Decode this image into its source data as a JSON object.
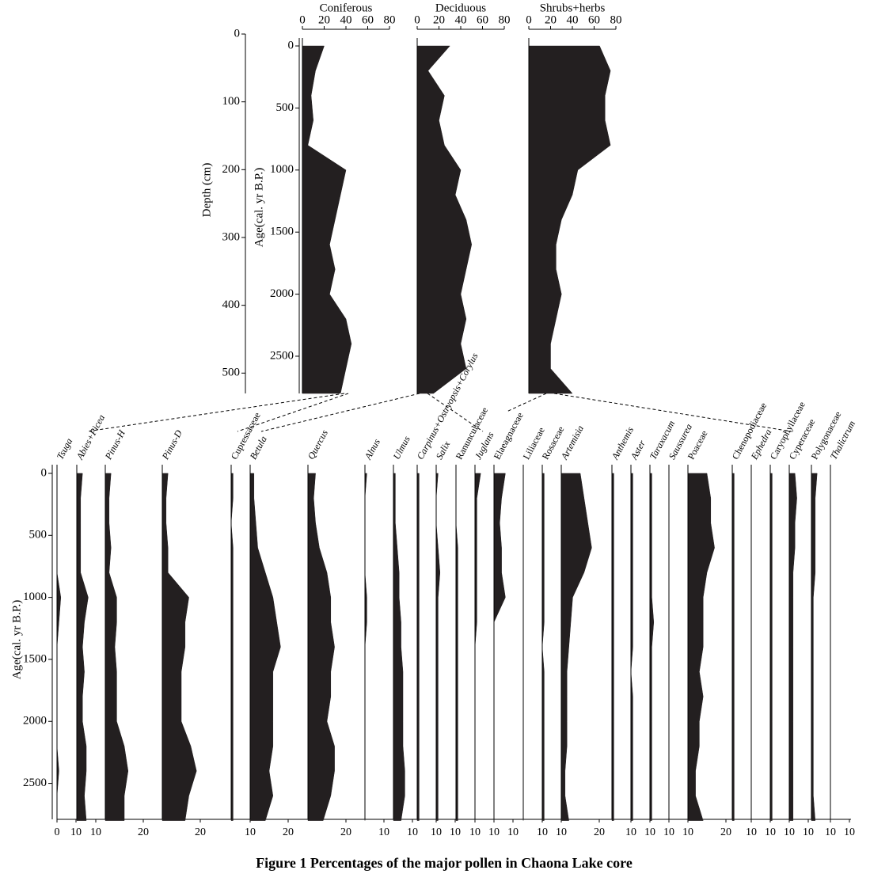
{
  "caption": "Figure 1  Percentages of the major pollen in Chaona Lake core",
  "chart_data": [
    {
      "type": "area",
      "y_label": "Age(cal. yr B.P.)",
      "ylim": [
        -64,
        2800
      ],
      "yticks": [
        0,
        500,
        1000,
        1500,
        2000,
        2500
      ],
      "y2_label": "Depth (cm)",
      "y2lim": [
        0,
        530
      ],
      "y2ticks": [
        0,
        100,
        200,
        300,
        400,
        500
      ],
      "ages": [
        0,
        200,
        400,
        600,
        800,
        1000,
        1200,
        1400,
        1600,
        1800,
        2000,
        2200,
        2400,
        2600,
        2800
      ],
      "series": [
        {
          "name": "Coniferous",
          "color": "#231f20",
          "xlim": [
            0,
            80
          ],
          "xticks": [
            0,
            20,
            40,
            60,
            80
          ],
          "values": [
            20,
            12,
            8,
            10,
            5,
            40,
            35,
            30,
            25,
            30,
            25,
            40,
            45,
            40,
            35
          ]
        },
        {
          "name": "Deciduous",
          "color": "#231f20",
          "xlim": [
            0,
            80
          ],
          "xticks": [
            0,
            20,
            40,
            60,
            80
          ],
          "values": [
            30,
            10,
            25,
            20,
            25,
            40,
            35,
            45,
            50,
            45,
            40,
            45,
            40,
            45,
            15
          ]
        },
        {
          "name": "Shrubs+herbs",
          "color": "#231f20",
          "xlim": [
            0,
            80
          ],
          "xticks": [
            0,
            20,
            40,
            60,
            80
          ],
          "values": [
            65,
            75,
            70,
            70,
            75,
            45,
            40,
            30,
            25,
            25,
            30,
            25,
            20,
            20,
            40
          ]
        }
      ]
    },
    {
      "type": "area",
      "y_label": "Age(cal. yr B.P.)",
      "ylim": [
        -70,
        2790
      ],
      "yticks": [
        0,
        500,
        1000,
        1500,
        2000,
        2500
      ],
      "ages": [
        0,
        200,
        400,
        600,
        800,
        1000,
        1200,
        1400,
        1600,
        1800,
        2000,
        2200,
        2400,
        2600,
        2800
      ],
      "series": [
        {
          "name": "Tsuga",
          "italic": true,
          "color": "#231f20",
          "xlim": [
            0,
            10
          ],
          "xticks": [
            0,
            10
          ],
          "values": [
            0,
            0,
            0,
            0,
            0,
            2,
            1,
            0,
            0,
            0,
            0,
            0,
            1,
            0,
            0
          ]
        },
        {
          "name": "Abies+Picea",
          "italic": true,
          "color": "#231f20",
          "xlim": [
            0,
            15
          ],
          "xticks": [
            10
          ],
          "values": [
            3,
            2,
            2,
            2,
            2,
            6,
            4,
            3,
            4,
            3,
            3,
            5,
            5,
            4,
            5
          ]
        },
        {
          "name": "Pinus-H",
          "italic": true,
          "color": "#231f20",
          "xlim": [
            0,
            30
          ],
          "xticks": [
            20
          ],
          "values": [
            3,
            2,
            2,
            3,
            2,
            6,
            6,
            5,
            6,
            6,
            6,
            10,
            12,
            10,
            10
          ]
        },
        {
          "name": "Pinus-D",
          "italic": true,
          "color": "#231f20",
          "xlim": [
            0,
            36
          ],
          "xticks": [
            20
          ],
          "values": [
            3,
            2,
            2,
            3,
            3,
            14,
            12,
            12,
            10,
            10,
            10,
            15,
            18,
            14,
            12
          ]
        },
        {
          "name": "Cupressaceae",
          "italic": false,
          "color": "#231f20",
          "xlim": [
            0,
            10
          ],
          "xticks": [
            10
          ],
          "values": [
            1,
            1,
            0,
            1,
            1,
            1,
            1,
            1,
            1,
            1,
            1,
            1,
            1,
            1,
            1
          ]
        },
        {
          "name": "Betula",
          "italic": true,
          "color": "#231f20",
          "xlim": [
            0,
            30
          ],
          "xticks": [
            20
          ],
          "values": [
            2,
            2,
            3,
            4,
            8,
            12,
            14,
            16,
            12,
            12,
            12,
            12,
            10,
            12,
            8
          ]
        },
        {
          "name": "Quercus",
          "italic": true,
          "color": "#231f20",
          "xlim": [
            0,
            30
          ],
          "xticks": [
            20
          ],
          "values": [
            4,
            3,
            4,
            6,
            10,
            12,
            12,
            14,
            12,
            12,
            10,
            14,
            14,
            12,
            8
          ]
        },
        {
          "name": "Alnus",
          "italic": true,
          "color": "#231f20",
          "xlim": [
            0,
            15
          ],
          "xticks": [
            10
          ],
          "values": [
            1,
            0,
            0,
            0,
            0,
            1,
            1,
            0,
            0,
            0,
            0,
            0,
            0,
            0,
            0
          ]
        },
        {
          "name": "Ulmus",
          "italic": true,
          "color": "#231f20",
          "xlim": [
            0,
            12
          ],
          "xticks": [
            10
          ],
          "values": [
            1,
            1,
            1,
            2,
            3,
            3,
            4,
            4,
            5,
            5,
            5,
            5,
            6,
            6,
            4
          ]
        },
        {
          "name": "Carpinus+Ostryopsis+Corylus",
          "italic": true,
          "color": "#231f20",
          "xlim": [
            0,
            10
          ],
          "xticks": [
            10
          ],
          "values": [
            1,
            1,
            1,
            1,
            1,
            1,
            1,
            1,
            1,
            1,
            1,
            1,
            1,
            1,
            1
          ]
        },
        {
          "name": "Salix",
          "italic": true,
          "color": "#231f20",
          "xlim": [
            0,
            10
          ],
          "xticks": [
            10
          ],
          "values": [
            1,
            0,
            0,
            1,
            2,
            1,
            1,
            1,
            1,
            1,
            1,
            1,
            1,
            1,
            1
          ]
        },
        {
          "name": "Ranunculaceae",
          "italic": false,
          "color": "#231f20",
          "xlim": [
            0,
            10
          ],
          "xticks": [
            10
          ],
          "values": [
            0,
            0,
            0,
            1,
            1,
            1,
            1,
            1,
            1,
            1,
            1,
            1,
            1,
            1,
            1
          ]
        },
        {
          "name": "Juglans",
          "italic": true,
          "color": "#231f20",
          "xlim": [
            0,
            10
          ],
          "xticks": [
            10
          ],
          "values": [
            3,
            1,
            1,
            1,
            1,
            1,
            1,
            0,
            0,
            0,
            0,
            0,
            0,
            0,
            0
          ]
        },
        {
          "name": "Elaeagnaceae",
          "italic": false,
          "color": "#231f20",
          "xlim": [
            0,
            15
          ],
          "xticks": [
            10
          ],
          "values": [
            6,
            4,
            3,
            4,
            4,
            6,
            0,
            0,
            0,
            0,
            0,
            0,
            0,
            0,
            0
          ]
        },
        {
          "name": "Liliaceae",
          "italic": false,
          "color": "#231f20",
          "xlim": [
            0,
            10
          ],
          "xticks": [
            10
          ],
          "values": [
            0,
            0,
            0,
            0,
            0,
            0,
            0,
            0,
            0,
            0,
            0,
            0,
            0,
            0,
            0
          ]
        },
        {
          "name": "Rosaceae",
          "italic": false,
          "color": "#231f20",
          "xlim": [
            0,
            10
          ],
          "xticks": [
            10
          ],
          "values": [
            1,
            1,
            1,
            1,
            1,
            1,
            1,
            0,
            1,
            1,
            1,
            1,
            1,
            1,
            1
          ]
        },
        {
          "name": "Artemisia",
          "italic": true,
          "color": "#231f20",
          "xlim": [
            0,
            26
          ],
          "xticks": [
            20
          ],
          "values": [
            10,
            12,
            14,
            16,
            12,
            6,
            5,
            4,
            3,
            3,
            3,
            3,
            2,
            2,
            4
          ]
        },
        {
          "name": "Anthemis",
          "italic": true,
          "color": "#231f20",
          "xlim": [
            0,
            10
          ],
          "xticks": [
            10
          ],
          "values": [
            1,
            1,
            1,
            1,
            1,
            1,
            1,
            1,
            1,
            1,
            1,
            1,
            1,
            1,
            1
          ]
        },
        {
          "name": "Aster",
          "italic": true,
          "color": "#231f20",
          "xlim": [
            0,
            10
          ],
          "xticks": [
            10
          ],
          "values": [
            1,
            1,
            1,
            1,
            1,
            1,
            1,
            1,
            0,
            1,
            1,
            1,
            1,
            1,
            1
          ]
        },
        {
          "name": "Taraxacum",
          "italic": true,
          "color": "#231f20",
          "xlim": [
            0,
            10
          ],
          "xticks": [
            10
          ],
          "values": [
            1,
            1,
            1,
            1,
            1,
            1,
            2,
            1,
            1,
            1,
            1,
            1,
            1,
            1,
            1
          ]
        },
        {
          "name": "Saussurea",
          "italic": true,
          "color": "#231f20",
          "xlim": [
            0,
            10
          ],
          "xticks": [
            10
          ],
          "values": [
            0,
            0,
            0,
            0,
            0,
            0,
            0,
            0,
            0,
            0,
            0,
            0,
            0,
            0,
            0
          ]
        },
        {
          "name": "Poaceae",
          "italic": false,
          "color": "#231f20",
          "xlim": [
            0,
            23
          ],
          "xticks": [
            20
          ],
          "values": [
            10,
            12,
            12,
            14,
            10,
            8,
            8,
            8,
            6,
            8,
            6,
            6,
            4,
            4,
            8
          ]
        },
        {
          "name": "Chenopodiaceae",
          "italic": false,
          "color": "#231f20",
          "xlim": [
            0,
            10
          ],
          "xticks": [
            10
          ],
          "values": [
            1,
            1,
            1,
            1,
            1,
            1,
            1,
            1,
            1,
            1,
            1,
            1,
            1,
            1,
            1
          ]
        },
        {
          "name": "Ephedra",
          "italic": true,
          "color": "#231f20",
          "xlim": [
            0,
            10
          ],
          "xticks": [
            10
          ],
          "values": [
            0,
            0,
            0,
            0,
            0,
            0,
            0,
            0,
            0,
            0,
            0,
            0,
            0,
            0,
            0
          ]
        },
        {
          "name": "Caryophyllaceae",
          "italic": false,
          "color": "#231f20",
          "xlim": [
            0,
            10
          ],
          "xticks": [
            10
          ],
          "values": [
            1,
            1,
            1,
            1,
            1,
            1,
            1,
            1,
            1,
            1,
            1,
            1,
            1,
            1,
            1
          ]
        },
        {
          "name": "Cyperaceae",
          "italic": false,
          "color": "#231f20",
          "xlim": [
            0,
            11
          ],
          "xticks": [
            10
          ],
          "values": [
            3,
            4,
            3,
            3,
            2,
            2,
            2,
            2,
            2,
            2,
            2,
            2,
            2,
            2,
            2
          ]
        },
        {
          "name": "Polygonaceae",
          "italic": false,
          "color": "#231f20",
          "xlim": [
            0,
            10
          ],
          "xticks": [
            10
          ],
          "values": [
            3,
            2,
            2,
            2,
            2,
            1,
            1,
            1,
            1,
            1,
            1,
            1,
            1,
            1,
            2
          ]
        },
        {
          "name": "Thalictrum",
          "italic": true,
          "color": "#231f20",
          "xlim": [
            0,
            10
          ],
          "xticks": [
            10
          ],
          "values": [
            0,
            0,
            0,
            0,
            0,
            0,
            0,
            0,
            0,
            0,
            0,
            0,
            0,
            0,
            0
          ]
        }
      ]
    }
  ]
}
